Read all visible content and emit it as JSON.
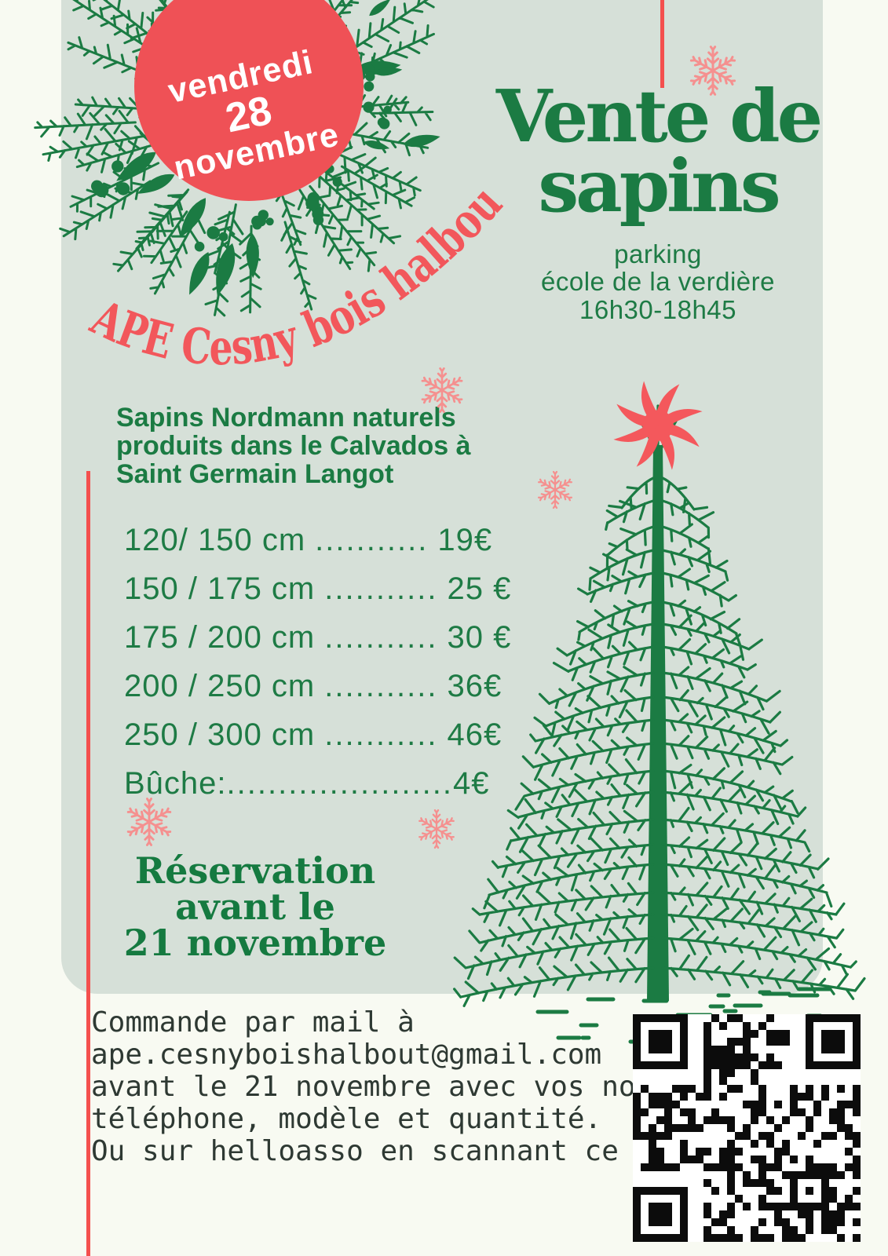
{
  "poster": {
    "badge": {
      "weekday": "vendredi",
      "day": "28",
      "month": "novembre"
    },
    "organization": "APE Cesny bois halbout",
    "title": {
      "line1": "Vente de",
      "line2": "sapins"
    },
    "event_info": {
      "line1": "parking",
      "line2": "école de la verdière",
      "line3": "16h30-18h45"
    },
    "description": {
      "line1": "Sapins Nordmann naturels",
      "line2": "produits dans le Calvados à",
      "line3": "Saint Germain Langot"
    },
    "price_list": [
      {
        "item": "120/ 150 cm",
        "dots": "...........",
        "price": "19€"
      },
      {
        "item": "150 / 175 cm",
        "dots": "...........",
        "price": "25 €"
      },
      {
        "item": "175 / 200 cm",
        "dots": "...........",
        "price": "30 €"
      },
      {
        "item": "200 / 250 cm",
        "dots": "...........",
        "price": "36€"
      },
      {
        "item": "250 / 300 cm",
        "dots": "...........",
        "price": "46€"
      },
      {
        "item": "Bûche:",
        "dots": "......................",
        "price": "4€"
      }
    ],
    "reservation": {
      "line1": "Réservation",
      "line2": "avant le",
      "line3": "21 novembre"
    },
    "contact": {
      "line1": "Commande par mail à",
      "line2": "ape.cesnyboishalbout@gmail.com",
      "line3": "avant le 21 novembre avec vos noms, mail,",
      "line4": "téléphone, modèle et quantité.",
      "line5": "Ou sur helloasso en scannant ce QR code:"
    },
    "colors": {
      "green": "#1b7b43",
      "coral": "#f2575b",
      "accent_red": "#f4504e",
      "panel_bg": "#d6e0d8",
      "page_bg": "#f8faf2",
      "text_dark": "#2e3933"
    },
    "icons": {
      "wreath": "christmas-wreath-illustration",
      "snowflake": "snowflake-icon",
      "star": "star-topper-icon",
      "tree": "fir-tree-illustration",
      "qr": "qr-code"
    }
  }
}
